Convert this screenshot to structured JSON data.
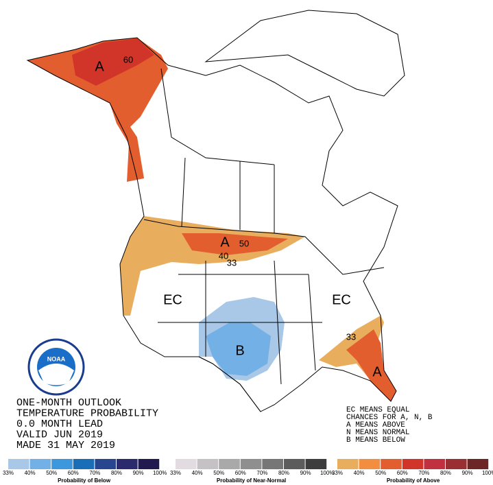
{
  "map": {
    "region_labels": [
      "A",
      "A",
      "B",
      "EC",
      "EC",
      "A"
    ],
    "contour_labels": [
      "60",
      "50",
      "40",
      "33",
      "33"
    ],
    "title_lines": [
      "ONE-MONTH OUTLOOK",
      "TEMPERATURE PROBABILITY",
      "0.0 MONTH LEAD",
      "VALID JUN 2019",
      "MADE 31 MAY 2019"
    ],
    "key_lines": [
      "EC MEANS EQUAL",
      "CHANCES FOR A, N, B",
      "A MEANS ABOVE",
      "N MEANS NORMAL",
      "B MEANS BELOW"
    ],
    "logo_text": "NOAA"
  },
  "legends": [
    {
      "title": "Probability of Below",
      "labels": [
        "33%",
        "40%",
        "50%",
        "60%",
        "70%",
        "80%",
        "90%",
        "100%"
      ],
      "colors": [
        "#a9c8e8",
        "#72b0e6",
        "#3c97dc",
        "#1a6db7",
        "#28468f",
        "#2b2a6c",
        "#211a4e"
      ]
    },
    {
      "title": "Probability of Near-Normal",
      "labels": [
        "33%",
        "40%",
        "50%",
        "60%",
        "70%",
        "80%",
        "90%",
        "100%"
      ],
      "colors": [
        "#e2dce2",
        "#c5c1c5",
        "#a9a9a9",
        "#8f8f8f",
        "#767676",
        "#5c5c5c",
        "#3d3d3d"
      ]
    },
    {
      "title": "Probability of Above",
      "labels": [
        "33%",
        "40%",
        "50%",
        "60%",
        "70%",
        "80%",
        "90%",
        "100%"
      ],
      "colors": [
        "#e8ae5e",
        "#f38d40",
        "#e35e2e",
        "#d1352a",
        "#c1303f",
        "#992e33",
        "#6d2626"
      ]
    }
  ]
}
